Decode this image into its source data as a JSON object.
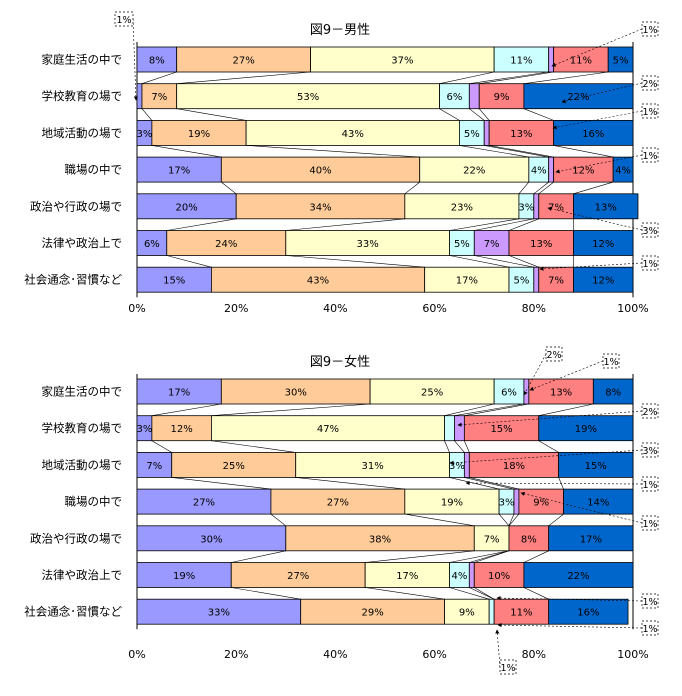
{
  "colors": [
    "#9999ff",
    "#ffcc99",
    "#ffffcc",
    "#ccffff",
    "#cc99ff",
    "#ff8080",
    "#0066cc"
  ],
  "percent_suffix": "%",
  "x_ticks": [
    "0%",
    "20%",
    "40%",
    "60%",
    "80%",
    "100%"
  ],
  "chart_data": [
    {
      "type": "bar",
      "stacked": true,
      "orientation": "horizontal",
      "title": "図9－男性",
      "categories": [
        "家庭生活の中で",
        "学校教育の場で",
        "地域活動の場で",
        "職場の中で",
        "政治や行政の場で",
        "法律や政治上で",
        "社会通念･習慣など"
      ],
      "xlim": [
        0,
        100
      ],
      "series": [
        {
          "name": "seg1",
          "values": [
            8,
            1,
            3,
            17,
            20,
            6,
            15
          ]
        },
        {
          "name": "seg2",
          "values": [
            27,
            7,
            19,
            40,
            34,
            24,
            43
          ]
        },
        {
          "name": "seg3",
          "values": [
            37,
            53,
            43,
            22,
            23,
            33,
            17
          ]
        },
        {
          "name": "seg4",
          "values": [
            11,
            6,
            5,
            4,
            3,
            5,
            5
          ]
        },
        {
          "name": "seg5",
          "values": [
            1,
            2,
            1,
            1,
            1,
            7,
            1
          ]
        },
        {
          "name": "seg6",
          "values": [
            11,
            9,
            13,
            12,
            7,
            13,
            7
          ]
        },
        {
          "name": "seg7",
          "values": [
            5,
            22,
            16,
            4,
            13,
            12,
            12
          ]
        }
      ],
      "callouts": [
        "1%",
        "1%",
        "2%",
        "1%",
        "1%",
        "3%",
        "1%"
      ]
    },
    {
      "type": "bar",
      "stacked": true,
      "orientation": "horizontal",
      "title": "図9－女性",
      "categories": [
        "家庭生活の中で",
        "学校教育の場で",
        "地域活動の場で",
        "職場の中で",
        "政治や行政の場で",
        "法律や政治上で",
        "社会通念･習慣など"
      ],
      "xlim": [
        0,
        100
      ],
      "series": [
        {
          "name": "seg1",
          "values": [
            17,
            3,
            7,
            27,
            30,
            19,
            33
          ]
        },
        {
          "name": "seg2",
          "values": [
            30,
            12,
            25,
            27,
            38,
            27,
            29
          ]
        },
        {
          "name": "seg3",
          "values": [
            25,
            47,
            31,
            19,
            7,
            17,
            9
          ]
        },
        {
          "name": "seg4",
          "values": [
            6,
            2,
            3,
            3,
            0,
            4,
            1
          ]
        },
        {
          "name": "seg5",
          "values": [
            1,
            2,
            1,
            1,
            0,
            1,
            0
          ]
        },
        {
          "name": "seg6",
          "values": [
            13,
            15,
            18,
            9,
            8,
            10,
            11
          ]
        },
        {
          "name": "seg7",
          "values": [
            8,
            19,
            15,
            14,
            17,
            22,
            16
          ]
        }
      ],
      "callouts": [
        "2%",
        "1%",
        "2%",
        "3%",
        "1%",
        "1%",
        "1%",
        "1%",
        "1%"
      ]
    }
  ]
}
